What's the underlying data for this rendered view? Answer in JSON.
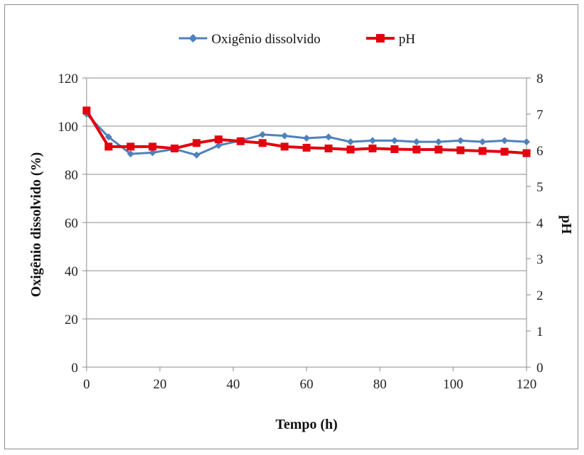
{
  "chart_data": {
    "type": "line",
    "title": "",
    "xlabel": "Tempo (h)",
    "ylabel": "Oxigênio dissolvido  (%)",
    "y2label": "pH",
    "xlim": [
      0,
      120
    ],
    "ylim": [
      0,
      120
    ],
    "y2lim": [
      0,
      8
    ],
    "x_ticks": [
      "0",
      "20",
      "40",
      "60",
      "80",
      "100",
      "120"
    ],
    "y_ticks": [
      "0",
      "20",
      "40",
      "60",
      "80",
      "100",
      "120"
    ],
    "y2_ticks": [
      "0",
      "1",
      "2",
      "3",
      "4",
      "5",
      "6",
      "7",
      "8"
    ],
    "grid": "horizontal",
    "legend_position": "top",
    "series": [
      {
        "name": "Oxigênio dissolvido",
        "axis": "left",
        "color": "#4f81bd",
        "marker": "diamond",
        "x": [
          0,
          6,
          12,
          18,
          24,
          30,
          36,
          42,
          48,
          54,
          60,
          66,
          72,
          78,
          84,
          90,
          96,
          102,
          108,
          114,
          120
        ],
        "values": [
          105,
          95.5,
          88.5,
          89,
          90.5,
          88,
          92,
          94,
          96.5,
          96,
          95,
          95.5,
          93.5,
          94,
          94,
          93.5,
          93.5,
          94,
          93.5,
          94,
          93.5
        ]
      },
      {
        "name": "pH",
        "axis": "right",
        "color": "#e3000f",
        "marker": "square",
        "x": [
          0,
          6,
          12,
          18,
          24,
          30,
          36,
          42,
          48,
          54,
          60,
          66,
          72,
          78,
          84,
          90,
          96,
          102,
          108,
          114,
          120
        ],
        "values": [
          7.1,
          6.1,
          6.1,
          6.1,
          6.05,
          6.2,
          6.3,
          6.25,
          6.2,
          6.1,
          6.07,
          6.05,
          6.02,
          6.05,
          6.03,
          6.02,
          6.02,
          6.0,
          5.98,
          5.96,
          5.92
        ]
      }
    ]
  }
}
